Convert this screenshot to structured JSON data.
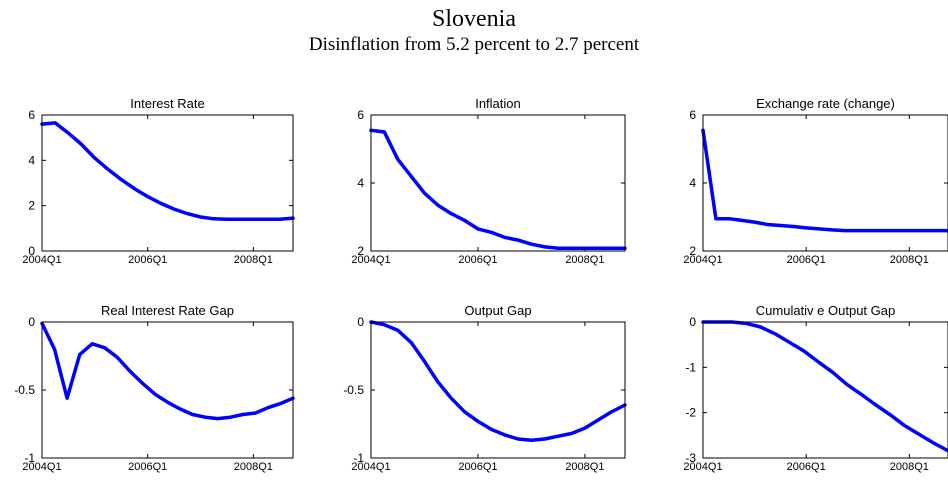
{
  "figure": {
    "title": "Slovenia",
    "subtitle": "Disinflation from 5.2 percent to 2.7 percent"
  },
  "chart_data": [
    {
      "type": "line",
      "title": "Interest Rate",
      "xlabel": "",
      "ylabel": "",
      "x_ticks": [
        "2004Q1",
        "2006Q1",
        "2008Q1"
      ],
      "y_ticks": [
        0,
        2,
        4,
        6
      ],
      "ylim": [
        0,
        6
      ],
      "grid": false,
      "color": "#0000ff",
      "values": [
        5.6,
        5.65,
        5.2,
        4.7,
        4.1,
        3.6,
        3.15,
        2.75,
        2.4,
        2.1,
        1.85,
        1.65,
        1.5,
        1.42,
        1.4,
        1.4,
        1.4,
        1.4,
        1.4,
        1.45
      ]
    },
    {
      "type": "line",
      "title": "Inflation",
      "xlabel": "",
      "ylabel": "",
      "x_ticks": [
        "2004Q1",
        "2006Q1",
        "2008Q1"
      ],
      "y_ticks": [
        2,
        4,
        6
      ],
      "ylim": [
        2,
        6
      ],
      "grid": false,
      "color": "#0000ff",
      "values": [
        5.55,
        5.5,
        4.7,
        4.2,
        3.7,
        3.35,
        3.1,
        2.9,
        2.65,
        2.55,
        2.4,
        2.32,
        2.2,
        2.12,
        2.08,
        2.08,
        2.08,
        2.08,
        2.08,
        2.08
      ]
    },
    {
      "type": "line",
      "title": "Exchange rate (change)",
      "xlabel": "",
      "ylabel": "",
      "x_ticks": [
        "2004Q1",
        "2006Q1",
        "2008Q1"
      ],
      "y_ticks": [
        2,
        4,
        6
      ],
      "ylim": [
        2,
        6
      ],
      "grid": false,
      "color": "#0000ff",
      "values": [
        5.55,
        2.95,
        2.95,
        2.9,
        2.85,
        2.78,
        2.75,
        2.72,
        2.68,
        2.65,
        2.62,
        2.6,
        2.6,
        2.6,
        2.6,
        2.6,
        2.6,
        2.6,
        2.6,
        2.6
      ]
    },
    {
      "type": "line",
      "title": "Real Interest Rate Gap",
      "xlabel": "",
      "ylabel": "",
      "x_ticks": [
        "2004Q1",
        "2006Q1",
        "2008Q1"
      ],
      "y_ticks": [
        -1,
        -0.5,
        0
      ],
      "ylim": [
        -1,
        0
      ],
      "grid": false,
      "color": "#0000ff",
      "values": [
        -0.01,
        -0.2,
        -0.56,
        -0.24,
        -0.16,
        -0.19,
        -0.26,
        -0.36,
        -0.45,
        -0.53,
        -0.59,
        -0.64,
        -0.68,
        -0.7,
        -0.71,
        -0.7,
        -0.68,
        -0.67,
        -0.63,
        -0.6,
        -0.56
      ]
    },
    {
      "type": "line",
      "title": "Output Gap",
      "xlabel": "",
      "ylabel": "",
      "x_ticks": [
        "2004Q1",
        "2006Q1",
        "2008Q1"
      ],
      "y_ticks": [
        -1,
        -0.5,
        0
      ],
      "ylim": [
        -1,
        0
      ],
      "grid": false,
      "color": "#0000ff",
      "values": [
        0.0,
        -0.02,
        -0.06,
        -0.15,
        -0.29,
        -0.44,
        -0.56,
        -0.66,
        -0.73,
        -0.79,
        -0.83,
        -0.86,
        -0.87,
        -0.86,
        -0.84,
        -0.82,
        -0.78,
        -0.72,
        -0.66,
        -0.61
      ]
    },
    {
      "type": "line",
      "title": "Cumulativ e Output Gap",
      "xlabel": "",
      "ylabel": "",
      "x_ticks": [
        "2004Q1",
        "2006Q1",
        "2008Q1"
      ],
      "y_ticks": [
        -3,
        -2,
        -1,
        0
      ],
      "ylim": [
        -3,
        0
      ],
      "grid": false,
      "color": "#0000ff",
      "values": [
        0.0,
        0.0,
        0.0,
        -0.03,
        -0.11,
        -0.26,
        -0.45,
        -0.64,
        -0.88,
        -1.11,
        -1.38,
        -1.6,
        -1.83,
        -2.05,
        -2.29,
        -2.48,
        -2.67,
        -2.84
      ]
    }
  ]
}
